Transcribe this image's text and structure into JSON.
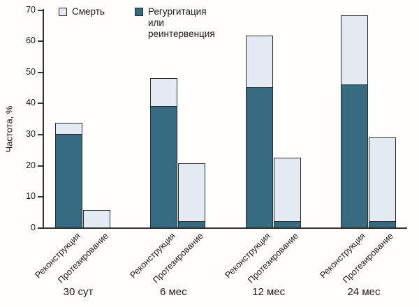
{
  "chart_data": {
    "type": "bar",
    "variant": "stacked",
    "title": "",
    "ylabel": "Частота, %",
    "xlabel": "",
    "ylim": [
      0,
      70
    ],
    "yticks": [
      0,
      10,
      20,
      30,
      40,
      50,
      60,
      70
    ],
    "grid": false,
    "legend_position": "top-left",
    "series": [
      {
        "name": "Смерть",
        "key": "death",
        "color": "#e4eaf1"
      },
      {
        "name": "Регургитация или реинтервенция",
        "key": "regurgitation_or_reintervention",
        "color": "#366a80"
      }
    ],
    "groups": [
      {
        "period": "30 сут",
        "bars": [
          {
            "label": "Реконструкция",
            "regurgitation_or_reintervention": 30,
            "death": 3.7,
            "total": 33.7
          },
          {
            "label": "Протезирование",
            "regurgitation_or_reintervention": 0,
            "death": 5.7,
            "total": 5.7
          }
        ]
      },
      {
        "period": "6 мес",
        "bars": [
          {
            "label": "Реконструкция",
            "regurgitation_or_reintervention": 39,
            "death": 9,
            "total": 48
          },
          {
            "label": "Протезирование",
            "regurgitation_or_reintervention": 2,
            "death": 18.7,
            "total": 20.7
          }
        ]
      },
      {
        "period": "12 мес",
        "bars": [
          {
            "label": "Реконструкция",
            "regurgitation_or_reintervention": 45,
            "death": 16.5,
            "total": 61.5
          },
          {
            "label": "Протезирование",
            "regurgitation_or_reintervention": 2,
            "death": 20.5,
            "total": 22.5
          }
        ]
      },
      {
        "period": "24 мес",
        "bars": [
          {
            "label": "Реконструкция",
            "regurgitation_or_reintervention": 46,
            "death": 22,
            "total": 68
          },
          {
            "label": "Протезирование",
            "regurgitation_or_reintervention": 2,
            "death": 27,
            "total": 29
          }
        ]
      }
    ],
    "colors": {
      "death": "#e4eaf1",
      "regurgitation_or_reintervention": "#366a80",
      "axis": "#333333",
      "bar_border": "#2b2b2b",
      "background": "#fffefa"
    }
  }
}
